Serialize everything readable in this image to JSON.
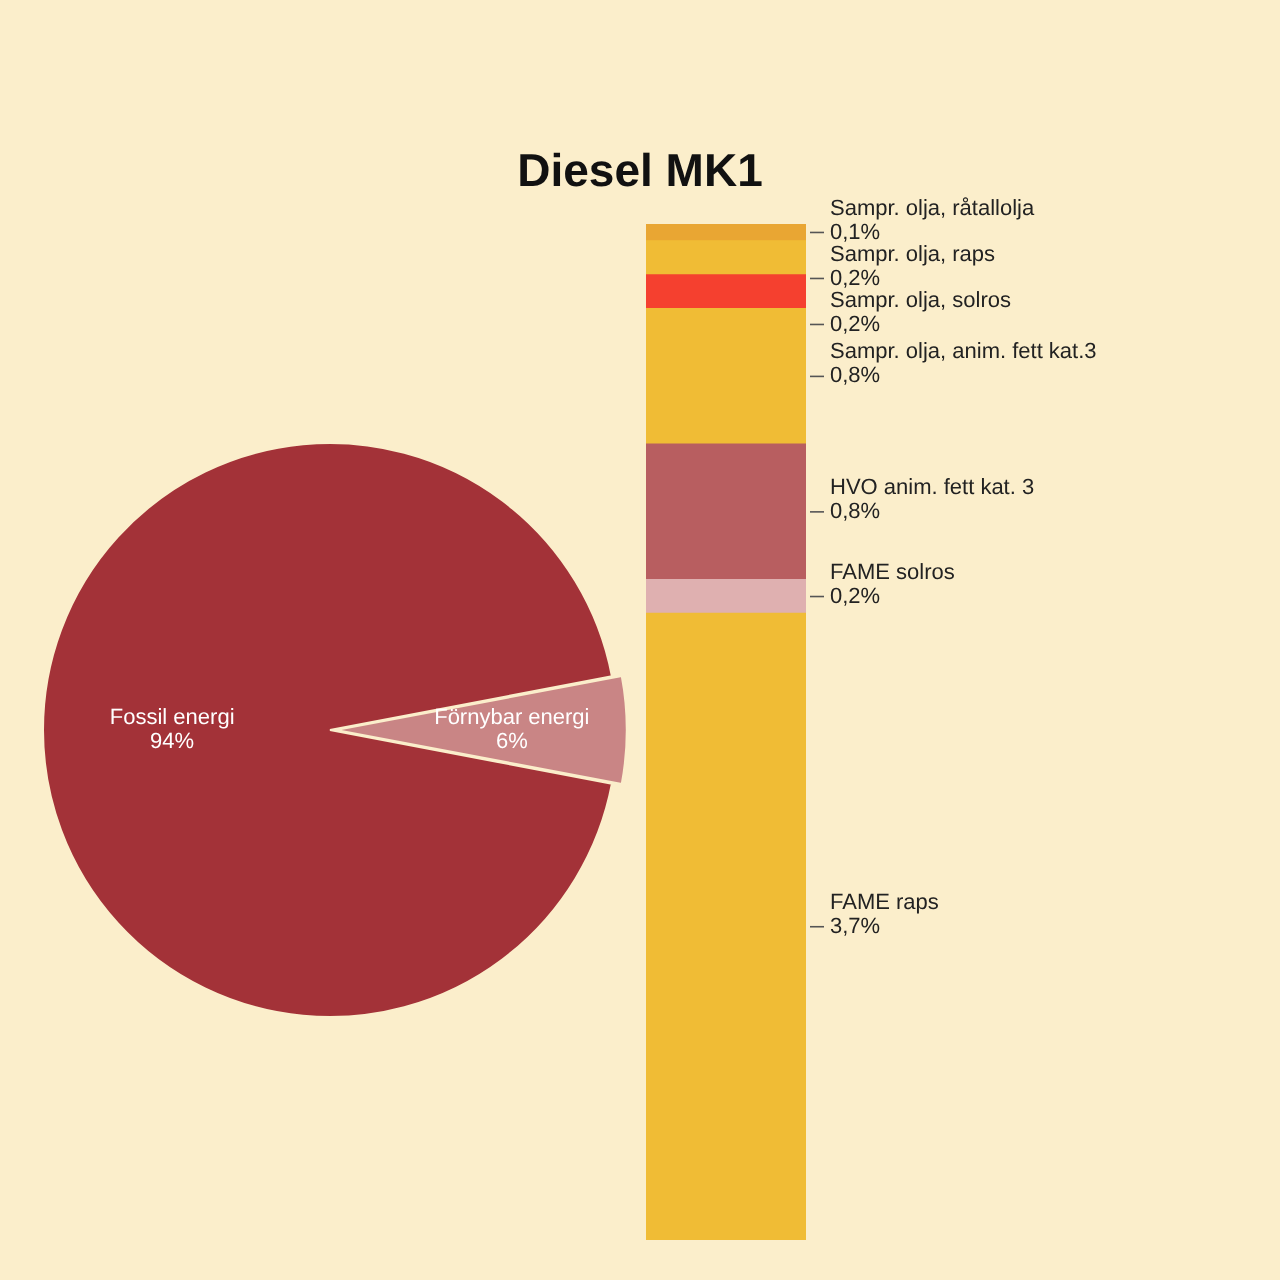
{
  "chart_data": [
    {
      "type": "pie",
      "title": "Diesel MK1",
      "categories": [
        "Fossil energi",
        "Förnybar energi"
      ],
      "values": [
        94,
        6
      ],
      "colors": [
        "#a33238",
        "#c98585"
      ],
      "value_labels": [
        "94%",
        "6%"
      ],
      "legend": false
    },
    {
      "type": "bar",
      "stacked": true,
      "categories": [
        null
      ],
      "legend": false,
      "series": [
        {
          "name": "FAME raps",
          "color": "#f0bc35",
          "values": [
            3.7
          ],
          "value_labels": [
            "3,7%"
          ]
        },
        {
          "name": "FAME solros",
          "color": "#dfb0b0",
          "values": [
            0.2
          ],
          "value_labels": [
            "0,2%"
          ]
        },
        {
          "name": "HVO anim. fett kat. 3",
          "color": "#b85e60",
          "values": [
            0.8
          ],
          "value_labels": [
            "0,8%"
          ]
        },
        {
          "name": "Sampr. olja, anim. fett kat.3",
          "color": "#f0bc35",
          "values": [
            0.8
          ],
          "value_labels": [
            "0,8%"
          ]
        },
        {
          "name": "Sampr. olja, solros",
          "color": "#f5402f",
          "values": [
            0.2
          ],
          "value_labels": [
            "0,2%"
          ]
        },
        {
          "name": "Sampr. olja, raps",
          "color": "#f0bc35",
          "values": [
            0.2
          ],
          "value_labels": [
            "0,2%"
          ]
        },
        {
          "name": "Sampr. olja, råtallolja",
          "color": "#e9a633",
          "values": [
            0.1
          ],
          "value_labels": [
            "0,1%"
          ]
        }
      ]
    }
  ]
}
